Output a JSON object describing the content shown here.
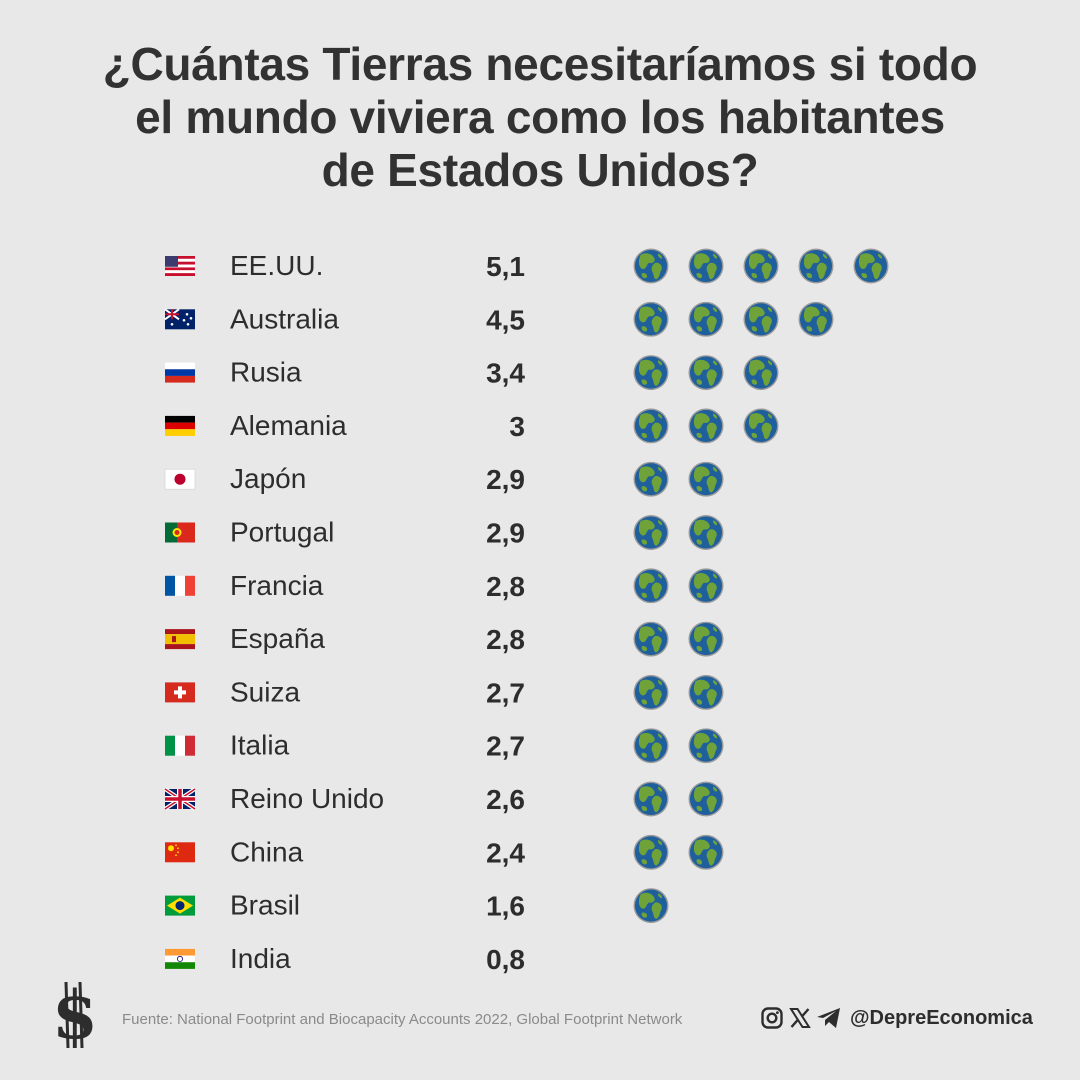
{
  "title": {
    "line1": "¿Cuántas Tierras necesitaríamos si todo",
    "line2": "el mundo viviera como los habitantes",
    "line3": "de Estados Unidos?"
  },
  "chart_data": {
    "type": "table",
    "unit_icon": "earth-globe-icon",
    "rows": [
      {
        "country": "EE.UU.",
        "value": 5.1,
        "label": "5,1",
        "flag": "usa-flag"
      },
      {
        "country": "Australia",
        "value": 4.5,
        "label": "4,5",
        "flag": "australia-flag"
      },
      {
        "country": "Rusia",
        "value": 3.4,
        "label": "3,4",
        "flag": "russia-flag"
      },
      {
        "country": "Alemania",
        "value": 3,
        "label": "3",
        "flag": "germany-flag"
      },
      {
        "country": "Japón",
        "value": 2.9,
        "label": "2,9",
        "flag": "japan-flag"
      },
      {
        "country": "Portugal",
        "value": 2.9,
        "label": "2,9",
        "flag": "portugal-flag"
      },
      {
        "country": "Francia",
        "value": 2.8,
        "label": "2,8",
        "flag": "france-flag"
      },
      {
        "country": "España",
        "value": 2.8,
        "label": "2,8",
        "flag": "spain-flag"
      },
      {
        "country": "Suiza",
        "value": 2.7,
        "label": "2,7",
        "flag": "switzerland-flag"
      },
      {
        "country": "Italia",
        "value": 2.7,
        "label": "2,7",
        "flag": "italy-flag"
      },
      {
        "country": "Reino Unido",
        "value": 2.6,
        "label": "2,6",
        "flag": "uk-flag"
      },
      {
        "country": "China",
        "value": 2.4,
        "label": "2,4",
        "flag": "china-flag"
      },
      {
        "country": "Brasil",
        "value": 1.6,
        "label": "1,6",
        "flag": "brazil-flag"
      },
      {
        "country": "India",
        "value": 0.8,
        "label": "0,8",
        "flag": "india-flag"
      }
    ]
  },
  "footer": {
    "logo": "dollar-sign-logo",
    "source": "Fuente: National Footprint and Biocapacity Accounts 2022, Global Footprint Network",
    "social_icons": [
      "instagram-icon",
      "x-icon",
      "telegram-icon"
    ],
    "handle": "@DepreEconomica"
  },
  "colors": {
    "background": "#e8e8e8",
    "text": "#2d2d2d",
    "ocean": "#1f5f9c",
    "land": "#6fa33a"
  }
}
